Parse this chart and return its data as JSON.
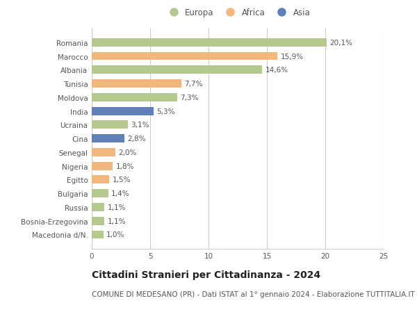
{
  "categories": [
    "Romania",
    "Marocco",
    "Albania",
    "Tunisia",
    "Moldova",
    "India",
    "Ucraina",
    "Cina",
    "Senegal",
    "Nigeria",
    "Egitto",
    "Bulgaria",
    "Russia",
    "Bosnia-Erzegovina",
    "Macedonia d/N."
  ],
  "values": [
    20.1,
    15.9,
    14.6,
    7.7,
    7.3,
    5.3,
    3.1,
    2.8,
    2.0,
    1.8,
    1.5,
    1.4,
    1.1,
    1.1,
    1.0
  ],
  "labels": [
    "20,1%",
    "15,9%",
    "14,6%",
    "7,7%",
    "7,3%",
    "5,3%",
    "3,1%",
    "2,8%",
    "2,0%",
    "1,8%",
    "1,5%",
    "1,4%",
    "1,1%",
    "1,1%",
    "1,0%"
  ],
  "continents": [
    "Europa",
    "Africa",
    "Europa",
    "Africa",
    "Europa",
    "Asia",
    "Europa",
    "Asia",
    "Africa",
    "Africa",
    "Africa",
    "Europa",
    "Europa",
    "Europa",
    "Europa"
  ],
  "colors": {
    "Europa": "#b5c98e",
    "Africa": "#f2b77c",
    "Asia": "#6080b8"
  },
  "legend_order": [
    "Europa",
    "Africa",
    "Asia"
  ],
  "xlim": [
    0,
    25
  ],
  "xticks": [
    0,
    5,
    10,
    15,
    20,
    25
  ],
  "title": "Cittadini Stranieri per Cittadinanza - 2024",
  "subtitle": "COMUNE DI MEDESANO (PR) - Dati ISTAT al 1° gennaio 2024 - Elaborazione TUTTITALIA.IT",
  "bg_color": "#ffffff",
  "grid_color": "#cccccc",
  "bar_height": 0.6,
  "title_fontsize": 10,
  "subtitle_fontsize": 7.5,
  "label_fontsize": 7.5,
  "tick_fontsize": 7.5,
  "legend_fontsize": 8.5
}
